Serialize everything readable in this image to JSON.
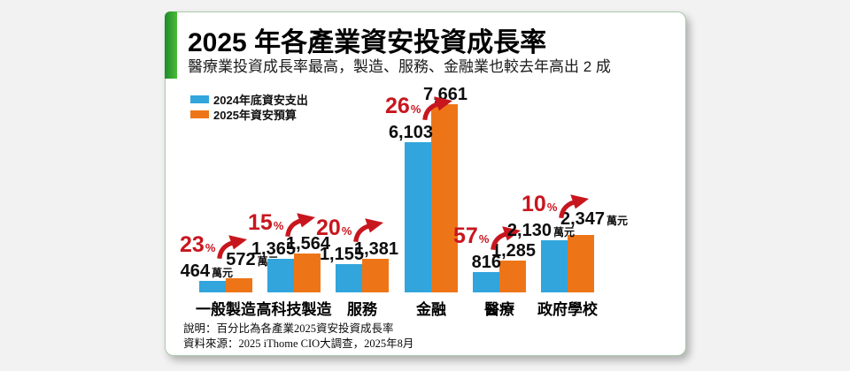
{
  "page": {
    "background": "#f2f2f2"
  },
  "card": {
    "title": "2025 年各產業資安投資成長率",
    "subtitle": "醫療業投資成長率最高，製造、服務、金融業也較去年高出 2 成",
    "accent_color": "#2f9e33"
  },
  "legend": {
    "items": [
      {
        "label": "2024年底資安支出",
        "color": "#31a5dc"
      },
      {
        "label": "2025年資安預算",
        "color": "#ee7517"
      }
    ]
  },
  "footer": {
    "note": "說明：百分比為各產業2025資安投資成長率",
    "source": "資料來源：2025 iThome CIO大調查，2025年8月"
  },
  "chart_data": {
    "type": "bar",
    "title": "2025 年各產業資安投資成長率",
    "subtitle": "醫療業投資成長率最高，製造、服務、金融業也較去年高出 2 成",
    "unit": "萬元",
    "categories": [
      "一般製造",
      "高科技製造",
      "服務",
      "金融",
      "醫療",
      "政府學校"
    ],
    "series": [
      {
        "name": "2024年底資安支出",
        "color": "#31a5dc",
        "values": [
          464,
          1365,
          1155,
          6103,
          816,
          2130
        ],
        "labels": [
          "464",
          "1,365",
          "1,155",
          "6,103",
          "816",
          "2,130"
        ]
      },
      {
        "name": "2025年資安預算",
        "color": "#ee7517",
        "values": [
          572,
          1564,
          1381,
          7661,
          1285,
          2347
        ],
        "labels": [
          "572",
          "1,564",
          "1,381",
          "7,661",
          "1,285",
          "2,347"
        ]
      }
    ],
    "growth_pct": [
      23,
      15,
      20,
      26,
      57,
      10
    ],
    "growth_pct_labels": [
      "23",
      "15",
      "20",
      "26",
      "57",
      "10"
    ],
    "show_unit_suffix": [
      true,
      false,
      false,
      false,
      false,
      true
    ],
    "accent_red": "#c8161e",
    "ylim": [
      0,
      8000
    ],
    "grid": false,
    "legend_position": "top-left",
    "note": "說明：百分比為各產業2025資安投資成長率",
    "source": "資料來源：2025 iThome CIO大調查，2025年8月"
  }
}
